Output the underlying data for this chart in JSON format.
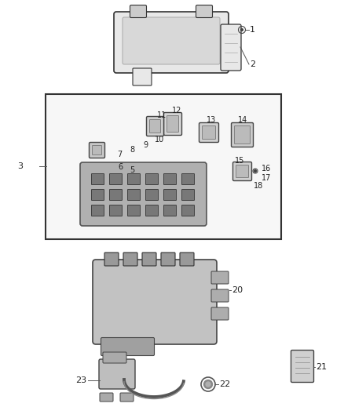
{
  "background_color": "#ffffff",
  "fig_width": 4.38,
  "fig_height": 5.33,
  "dpi": 100,
  "colors": {
    "outline": "#333333",
    "fill_light": "#e8e8e8",
    "fill_mid": "#cccccc",
    "fill_dark": "#aaaaaa",
    "box_border": "#444444",
    "text": "#222222",
    "screw": "#666666",
    "line_color": "#555555"
  },
  "label_fontsize": 7
}
